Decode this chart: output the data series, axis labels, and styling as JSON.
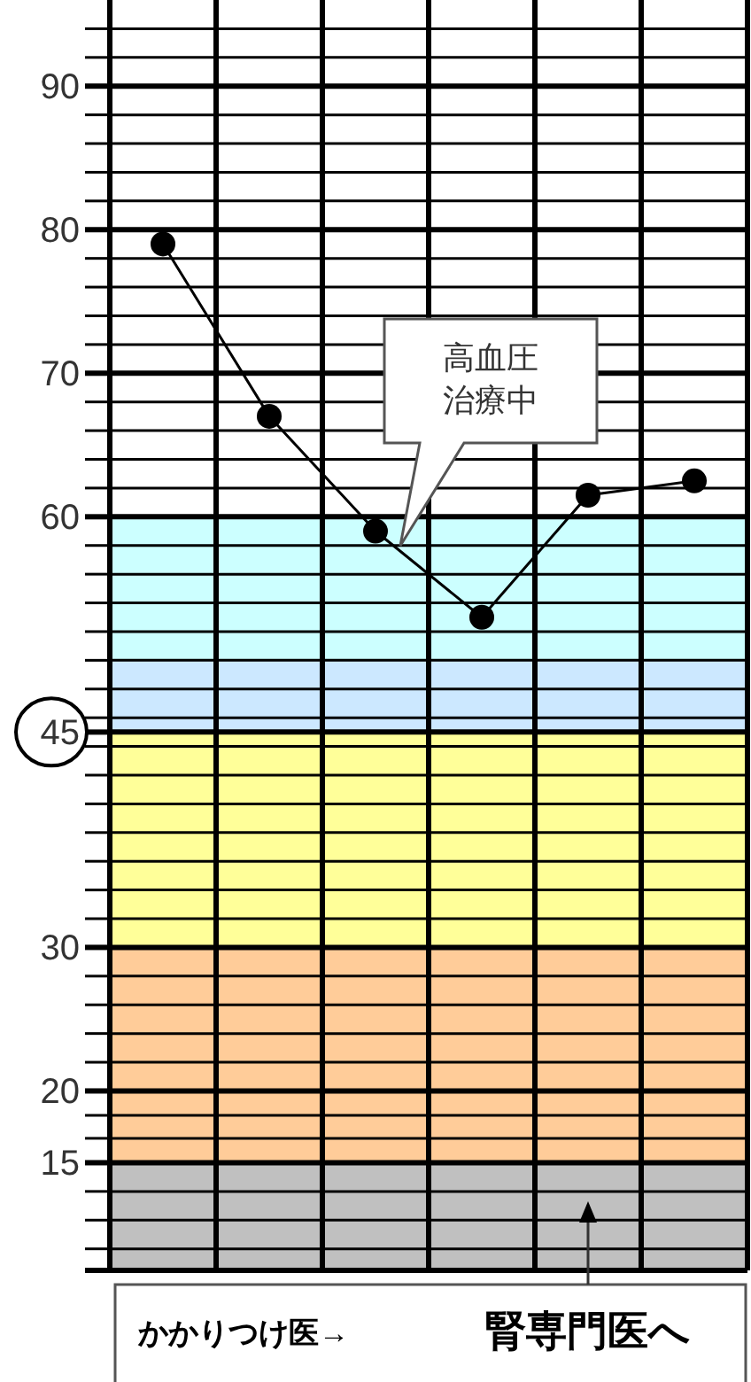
{
  "chart_data": {
    "type": "line",
    "categories": [
      null,
      null,
      null,
      null,
      null,
      null
    ],
    "series": [
      {
        "color": "#000000",
        "values": [
          79,
          67,
          59,
          53,
          61.5,
          62.5
        ]
      }
    ],
    "ylim": [
      7.5,
      96
    ],
    "yticks": [
      {
        "value": 9,
        "label": null
      },
      {
        "value": 11,
        "label": null
      },
      {
        "value": 13,
        "label": null
      },
      15,
      {
        "value": 16.7,
        "label": null
      },
      {
        "value": 18.3,
        "label": null
      },
      20,
      {
        "value": 22,
        "label": null
      },
      {
        "value": 24,
        "label": null
      },
      {
        "value": 26,
        "label": null
      },
      {
        "value": 28,
        "label": null
      },
      30,
      {
        "value": 32,
        "label": null
      },
      {
        "value": 34,
        "label": null
      },
      {
        "value": 36,
        "label": null
      },
      {
        "value": 38,
        "label": null
      },
      {
        "value": 40,
        "label": null
      },
      {
        "value": 42,
        "label": null
      },
      {
        "value": 44,
        "label": null
      },
      45,
      {
        "value": 46,
        "label": null
      },
      {
        "value": 48,
        "label": null
      },
      {
        "value": 50,
        "label": null
      },
      {
        "value": 52,
        "label": null
      },
      {
        "value": 54,
        "label": null
      },
      {
        "value": 56,
        "label": null
      },
      {
        "value": 58,
        "label": null
      },
      60,
      {
        "value": 62,
        "label": null
      },
      {
        "value": 64,
        "label": null
      },
      {
        "value": 66,
        "label": null
      },
      {
        "value": 68,
        "label": null
      },
      70,
      {
        "value": 72,
        "label": null
      },
      {
        "value": 74,
        "label": null
      },
      {
        "value": 76,
        "label": null
      },
      {
        "value": 78,
        "label": null
      },
      80,
      {
        "value": 82,
        "label": null
      },
      {
        "value": 84,
        "label": null
      },
      {
        "value": 86,
        "label": null
      },
      {
        "value": 88,
        "label": null
      },
      90,
      {
        "value": 92,
        "label": null
      },
      {
        "value": 94,
        "label": null
      }
    ],
    "grid": true,
    "marker": "circle",
    "line_style": "solid",
    "bands": [
      {
        "axis": "y",
        "from": 7.5,
        "to": 15,
        "color": "#c0c0c0"
      },
      {
        "axis": "y",
        "from": 15,
        "to": 30,
        "color": "#ffcc99"
      },
      {
        "axis": "y",
        "from": 30,
        "to": 45,
        "color": "#ffff99"
      },
      {
        "axis": "y",
        "from": 45,
        "to": 50,
        "color": "#cce8ff"
      },
      {
        "axis": "y",
        "from": 50,
        "to": 60,
        "color": "#ccffff"
      }
    ],
    "annotations": [
      "高血圧治療中",
      "かかりつけ医→",
      "腎専門医へ"
    ]
  }
}
